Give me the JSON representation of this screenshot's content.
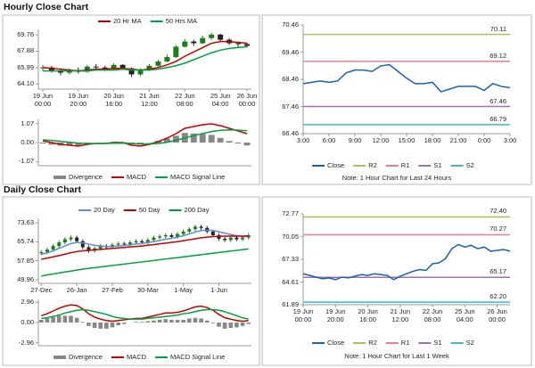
{
  "headings": [
    "Hourly Close Chart",
    "Daily Close Chart"
  ],
  "chart_data": [
    {
      "type": "candlestick",
      "categories": [
        "19 Jun\n00:00",
        null,
        null,
        null,
        "19 Jun\n20:00",
        null,
        null,
        null,
        "20 Jun\n16:00",
        null,
        null,
        null,
        "21 Jun\n12:00",
        null,
        null,
        null,
        "22 Jun\n08:00",
        null,
        null,
        null,
        "25 Jun\n04:00",
        null,
        null,
        "26 Jun\n00:00"
      ],
      "open": [
        65.9,
        66.0,
        65.6,
        65.4,
        65.7,
        65.5,
        66.1,
        66.0,
        65.8,
        66.3,
        65.9,
        65.2,
        65.7,
        66.2,
        66.7,
        67.2,
        68.4,
        69.0,
        68.8,
        69.4,
        69.8,
        69.2,
        68.8,
        68.7
      ],
      "high": [
        66.3,
        66.2,
        65.8,
        65.9,
        66.0,
        66.3,
        66.4,
        66.2,
        66.5,
        66.4,
        66.0,
        65.9,
        66.4,
        66.9,
        67.5,
        68.6,
        69.3,
        69.2,
        69.7,
        70.0,
        69.9,
        69.4,
        69.0,
        68.9
      ],
      "low": [
        65.6,
        65.4,
        65.1,
        65.2,
        65.3,
        65.4,
        65.8,
        65.6,
        65.7,
        65.7,
        64.9,
        65.0,
        65.6,
        66.0,
        66.6,
        67.1,
        68.3,
        68.5,
        68.7,
        69.2,
        69.0,
        68.6,
        68.4,
        68.3
      ],
      "close": [
        66.0,
        65.6,
        65.4,
        65.7,
        65.5,
        66.1,
        66.0,
        65.8,
        66.3,
        65.9,
        65.2,
        65.7,
        66.2,
        66.7,
        67.2,
        68.4,
        69.0,
        68.8,
        69.4,
        69.8,
        69.2,
        68.8,
        68.7,
        68.5
      ],
      "up_color": "#1f7a1f",
      "down_color": "#222222",
      "series": [
        {
          "name": "20 Hr MA",
          "color": "#c00000",
          "values": [
            66.0,
            65.9,
            65.8,
            65.7,
            65.6,
            65.7,
            65.8,
            65.8,
            65.9,
            65.9,
            65.8,
            65.7,
            65.8,
            66.0,
            66.3,
            66.7,
            67.3,
            67.8,
            68.3,
            68.8,
            69.0,
            69.0,
            68.9,
            68.8
          ]
        },
        {
          "name": "50 Hrs MA",
          "color": "#00a040",
          "values": [
            65.6,
            65.6,
            65.6,
            65.6,
            65.6,
            65.6,
            65.7,
            65.7,
            65.7,
            65.8,
            65.7,
            65.7,
            65.7,
            65.8,
            66.0,
            66.2,
            66.5,
            66.9,
            67.3,
            67.7,
            68.0,
            68.2,
            68.3,
            68.4
          ]
        }
      ],
      "ylim": [
        63.5,
        70.4
      ],
      "yticks": [
        69.76,
        67.88,
        65.99,
        {
          "value": 64.1,
          "label": "64.10"
        }
      ]
    },
    {
      "type": "macd",
      "series": [
        {
          "name": "Divergence",
          "color": "#888888",
          "style": "bar",
          "values": [
            -0.05,
            -0.12,
            -0.17,
            -0.17,
            -0.17,
            -0.05,
            0,
            0,
            0.04,
            0.03,
            -0.1,
            -0.12,
            -0.02,
            0.1,
            0.23,
            0.38,
            0.54,
            0.51,
            0.49,
            0.43,
            0.26,
            0.09,
            -0.05,
            -0.16
          ]
        },
        {
          "name": "MACD",
          "color": "#c00000",
          "style": "line",
          "values": [
            0.1,
            0.0,
            -0.1,
            -0.15,
            -0.2,
            -0.1,
            -0.05,
            -0.05,
            0.0,
            0.0,
            -0.15,
            -0.2,
            -0.1,
            0.05,
            0.25,
            0.5,
            0.8,
            0.9,
            1.0,
            1.05,
            0.95,
            0.8,
            0.65,
            0.5
          ]
        },
        {
          "name": "MACD Signal Line",
          "color": "#00a040",
          "style": "line",
          "values": [
            0.15,
            0.12,
            0.07,
            0.02,
            -0.03,
            -0.05,
            -0.05,
            -0.05,
            -0.04,
            -0.03,
            -0.05,
            -0.08,
            -0.08,
            -0.05,
            0.02,
            0.12,
            0.26,
            0.39,
            0.51,
            0.62,
            0.69,
            0.71,
            0.7,
            0.66
          ]
        }
      ],
      "ylim": [
        -1.3,
        1.3
      ],
      "yticks": [
        1.07,
        {
          "value": 0,
          "label": "0.00"
        },
        -1.07
      ]
    },
    {
      "type": "line",
      "categories": [
        "3:00",
        null,
        null,
        "6:00",
        null,
        null,
        "9:00",
        null,
        null,
        "12:00",
        null,
        null,
        "15:00",
        null,
        null,
        "18:00",
        null,
        null,
        "21:00",
        null,
        null,
        "0:00",
        null,
        null,
        "3:00"
      ],
      "series": [
        {
          "name": "Close",
          "color": "#1f5fa8",
          "values": [
            68.3,
            68.35,
            68.4,
            68.35,
            68.4,
            68.7,
            68.8,
            68.8,
            68.75,
            68.95,
            69.0,
            68.75,
            68.5,
            68.3,
            68.3,
            68.35,
            68.0,
            68.1,
            68.2,
            68.2,
            68.2,
            68.05,
            68.3,
            68.2,
            68.15
          ]
        }
      ],
      "levels": [
        {
          "name": "R2",
          "color": "#a8c060",
          "value": 70.11
        },
        {
          "name": "R1",
          "color": "#e08090",
          "value": 69.12
        },
        {
          "name": "S1",
          "color": "#a070b0",
          "value": 67.46
        },
        {
          "name": "S2",
          "color": "#40b8c8",
          "value": 66.79
        }
      ],
      "note": "Note: 1 Hour Chart for Last 24 Hours",
      "ylim": [
        66.46,
        70.46
      ],
      "yticks": [
        70.46,
        69.46,
        68.46,
        67.46,
        66.46
      ]
    },
    {
      "type": "candlestick",
      "categories": [
        "27-Dec",
        null,
        null,
        null,
        null,
        null,
        "26-Jan",
        null,
        null,
        null,
        null,
        null,
        "27-Feb",
        null,
        null,
        null,
        null,
        null,
        "30-Mar",
        null,
        null,
        null,
        null,
        null,
        "1-May",
        null,
        null,
        null,
        null,
        null,
        "1-Jun",
        null,
        null,
        null,
        null,
        null
      ],
      "open": [
        61.0,
        61.5,
        62.5,
        64.0,
        65.5,
        66.8,
        67.5,
        66.0,
        63.5,
        62.0,
        63.0,
        64.0,
        63.5,
        64.5,
        65.0,
        64.8,
        65.5,
        66.0,
        65.5,
        66.5,
        67.5,
        68.0,
        68.5,
        67.8,
        69.0,
        70.0,
        71.0,
        72.0,
        71.5,
        70.0,
        68.5,
        67.0,
        66.5,
        67.5,
        66.8,
        67.5
      ],
      "high": [
        62.3,
        63.3,
        64.8,
        66.3,
        67.6,
        68.3,
        68.3,
        66.8,
        64.3,
        63.8,
        64.8,
        64.8,
        65.3,
        65.8,
        65.8,
        66.3,
        66.8,
        66.8,
        67.3,
        68.3,
        68.8,
        69.3,
        69.3,
        69.8,
        70.8,
        71.8,
        72.8,
        72.8,
        72.3,
        70.8,
        69.3,
        67.8,
        68.3,
        68.3,
        68.3,
        69.3
      ],
      "low": [
        60.2,
        60.7,
        61.7,
        63.2,
        64.7,
        66.0,
        65.2,
        62.7,
        61.2,
        61.2,
        62.2,
        62.7,
        62.7,
        63.7,
        64.0,
        64.0,
        64.7,
        64.7,
        64.7,
        65.7,
        66.7,
        67.2,
        67.0,
        67.0,
        68.2,
        69.2,
        70.2,
        70.7,
        69.2,
        67.7,
        66.2,
        65.7,
        65.7,
        66.0,
        66.0,
        66.7
      ],
      "close": [
        61.5,
        62.5,
        64.0,
        65.5,
        66.8,
        67.5,
        66.0,
        63.5,
        62.0,
        63.0,
        64.0,
        63.5,
        64.5,
        65.0,
        64.8,
        65.5,
        66.0,
        65.5,
        66.5,
        67.5,
        68.0,
        68.5,
        67.8,
        69.0,
        70.0,
        71.0,
        72.0,
        71.5,
        70.0,
        68.5,
        67.0,
        66.5,
        67.5,
        66.8,
        67.5,
        68.5
      ],
      "up_color": "#1f7a1f",
      "down_color": "#222222",
      "series": [
        {
          "name": "20 Day",
          "color": "#5b8fd0",
          "values": [
            60.5,
            61.2,
            62.0,
            63.0,
            64.0,
            65.0,
            65.5,
            65.3,
            64.8,
            64.3,
            64.0,
            63.8,
            63.8,
            64.0,
            64.2,
            64.5,
            64.8,
            65.0,
            65.4,
            65.8,
            66.3,
            66.8,
            67.2,
            67.7,
            68.3,
            69.0,
            69.8,
            70.4,
            70.6,
            70.4,
            69.9,
            69.3,
            68.8,
            68.3,
            68.0,
            67.9
          ]
        },
        {
          "name": "50 Day",
          "color": "#c00000",
          "values": [
            58.5,
            59.0,
            59.5,
            60.0,
            60.6,
            61.2,
            61.7,
            62.0,
            62.2,
            62.4,
            62.6,
            62.8,
            63.0,
            63.2,
            63.4,
            63.6,
            63.8,
            64.0,
            64.3,
            64.6,
            64.9,
            65.2,
            65.5,
            65.8,
            66.2,
            66.6,
            67.0,
            67.4,
            67.7,
            67.9,
            68.0,
            68.1,
            68.1,
            68.1,
            68.1,
            68.2
          ]
        },
        {
          "name": "200 Day",
          "color": "#00a040",
          "values": [
            51.5,
            52.0,
            52.4,
            52.8,
            53.2,
            53.6,
            54.0,
            54.4,
            54.7,
            55.0,
            55.3,
            55.6,
            55.9,
            56.2,
            56.5,
            56.8,
            57.1,
            57.4,
            57.7,
            58.0,
            58.3,
            58.6,
            58.9,
            59.2,
            59.5,
            59.8,
            60.1,
            60.4,
            60.7,
            61.0,
            61.3,
            61.6,
            61.9,
            62.2,
            62.5,
            62.8
          ]
        }
      ],
      "ylim": [
        48.5,
        75.5
      ],
      "yticks": [
        73.63,
        65.74,
        57.85,
        49.96
      ]
    },
    {
      "type": "macd",
      "series": [
        {
          "name": "Divergence",
          "color": "#888888",
          "style": "bar",
          "values": [
            0.4,
            0.6,
            0.8,
            1.0,
            1.0,
            1.0,
            0.7,
            0.1,
            -0.5,
            -0.8,
            -0.9,
            -0.9,
            -0.7,
            -0.4,
            -0.2,
            0.0,
            0.1,
            0.1,
            0.2,
            0.3,
            0.4,
            0.5,
            0.4,
            0.4,
            0.4,
            0.6,
            0.7,
            0.6,
            0.3,
            -0.1,
            -0.6,
            -0.9,
            -0.8,
            -0.7,
            -0.5,
            -0.2
          ]
        },
        {
          "name": "MACD",
          "color": "#c00000",
          "style": "line",
          "values": [
            1.0,
            1.3,
            1.7,
            2.1,
            2.4,
            2.6,
            2.5,
            2.0,
            1.3,
            0.8,
            0.5,
            0.3,
            0.2,
            0.3,
            0.4,
            0.5,
            0.6,
            0.6,
            0.8,
            1.0,
            1.2,
            1.4,
            1.4,
            1.5,
            1.7,
            2.0,
            2.3,
            2.4,
            2.2,
            1.8,
            1.2,
            0.7,
            0.5,
            0.3,
            0.2,
            0.3
          ]
        },
        {
          "name": "MACD Signal Line",
          "color": "#00a040",
          "style": "line",
          "values": [
            0.6,
            0.7,
            0.9,
            1.1,
            1.4,
            1.6,
            1.8,
            1.9,
            1.8,
            1.6,
            1.4,
            1.2,
            0.9,
            0.7,
            0.6,
            0.5,
            0.5,
            0.5,
            0.6,
            0.7,
            0.8,
            0.9,
            1.0,
            1.1,
            1.3,
            1.4,
            1.6,
            1.8,
            1.9,
            1.9,
            1.8,
            1.6,
            1.3,
            1.0,
            0.7,
            0.5
          ]
        }
      ],
      "ylim": [
        -3.4,
        3.4
      ],
      "yticks": [
        2.96,
        {
          "value": 0,
          "label": "0.00"
        },
        -2.96
      ]
    },
    {
      "type": "line",
      "categories": [
        "19 Jun\n00:00",
        null,
        null,
        null,
        null,
        "19 Jun\n20:00",
        null,
        null,
        null,
        null,
        "20 Jun\n16:00",
        null,
        null,
        null,
        null,
        "21 Jun\n12:00",
        null,
        null,
        null,
        null,
        "22 Jun\n08:00",
        null,
        null,
        null,
        null,
        "25 Jun\n04:00",
        null,
        null,
        null,
        null,
        "26 Jun\n00:00",
        null,
        null
      ],
      "series": [
        {
          "name": "Close",
          "color": "#1f5fa8",
          "values": [
            65.6,
            65.4,
            65.2,
            65.0,
            65.1,
            64.9,
            65.2,
            65.1,
            65.3,
            65.5,
            65.4,
            65.6,
            65.5,
            65.4,
            64.9,
            65.3,
            65.6,
            65.9,
            66.1,
            66.0,
            66.8,
            66.9,
            67.4,
            68.6,
            69.1,
            68.8,
            69.0,
            68.6,
            68.8,
            68.3,
            68.4,
            68.5,
            68.3
          ]
        }
      ],
      "levels": [
        {
          "name": "R2",
          "color": "#a8c060",
          "value": 72.4,
          "value_label": "72.40"
        },
        {
          "name": "R1",
          "color": "#e08090",
          "value": 70.27
        },
        {
          "name": "S1",
          "color": "#a070b0",
          "value": 65.17
        },
        {
          "name": "S2",
          "color": "#40b8c8",
          "value": 62.2,
          "value_label": "62.20"
        }
      ],
      "note": "Note: 1 Hour Chart for Last 1 Week",
      "ylim": [
        61.89,
        72.77
      ],
      "yticks": [
        72.77,
        70.05,
        67.33,
        64.61,
        61.89
      ]
    }
  ]
}
